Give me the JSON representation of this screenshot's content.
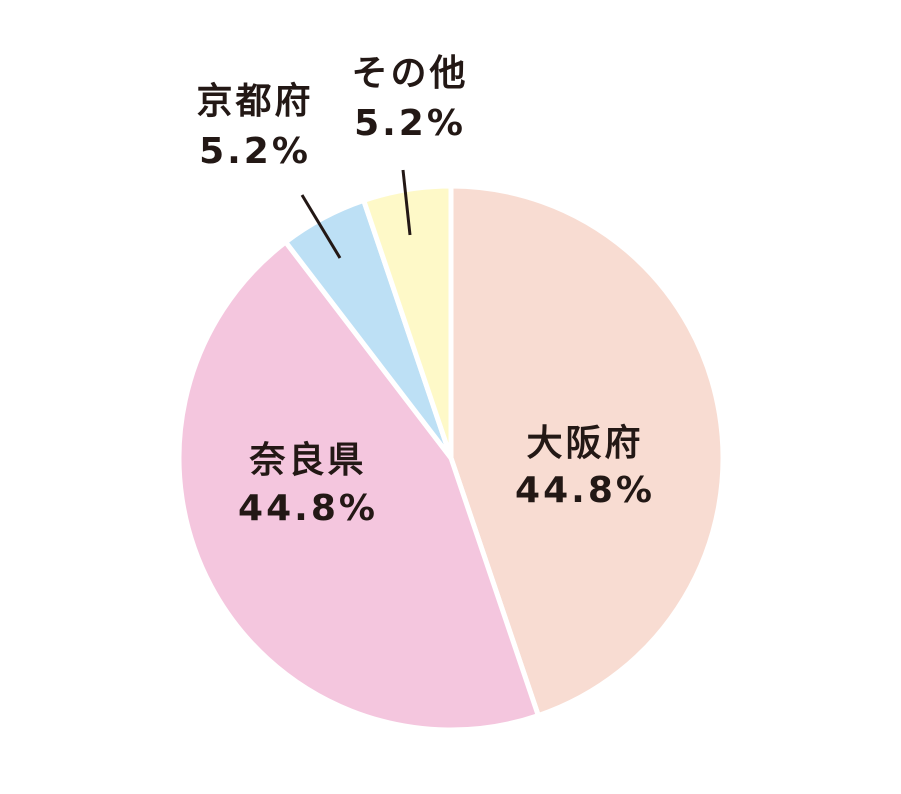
{
  "chart_data": {
    "type": "pie",
    "categories": [
      "大阪府",
      "奈良県",
      "京都府",
      "その他"
    ],
    "values": [
      44.8,
      44.8,
      5.2,
      5.2
    ],
    "value_labels": [
      "44.8%",
      "44.8%",
      "5.2%",
      "5.2%"
    ],
    "colors": [
      "#f8dcd2",
      "#f4c6de",
      "#bde0f5",
      "#fef9c8"
    ]
  }
}
